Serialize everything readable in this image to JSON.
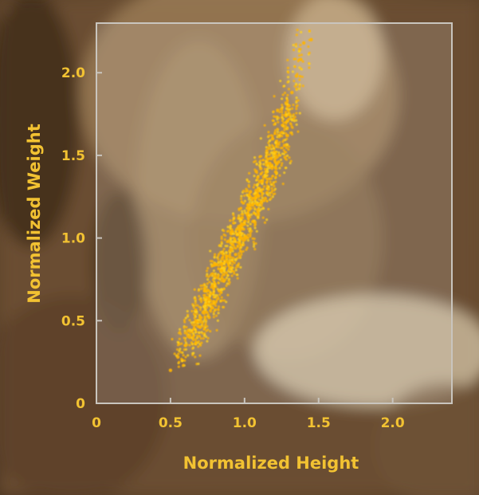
{
  "chart_data": {
    "type": "scatter",
    "title": "",
    "xlabel": "Normalized Height",
    "ylabel": "Normalized Weight",
    "xlim": [
      0,
      2.4
    ],
    "ylim": [
      0,
      2.3
    ],
    "x_ticks": [
      {
        "value": 0,
        "label": "0"
      },
      {
        "value": 0.5,
        "label": "0.5"
      },
      {
        "value": 1.0,
        "label": "1.0"
      },
      {
        "value": 1.5,
        "label": "1.5"
      },
      {
        "value": 2.0,
        "label": "2.0"
      }
    ],
    "y_ticks": [
      {
        "value": 0,
        "label": "0"
      },
      {
        "value": 0.5,
        "label": "0.5"
      },
      {
        "value": 1.0,
        "label": "1.0"
      },
      {
        "value": 1.5,
        "label": "1.5"
      },
      {
        "value": 2.0,
        "label": "2.0"
      }
    ],
    "grid": false,
    "series": [
      {
        "color": "#ffb400",
        "points": [
          [
            0.55,
            0.28
          ],
          [
            0.6,
            0.35
          ],
          [
            0.63,
            0.4
          ],
          [
            0.66,
            0.45
          ],
          [
            0.68,
            0.5
          ],
          [
            0.7,
            0.52
          ],
          [
            0.72,
            0.55
          ],
          [
            0.74,
            0.6
          ],
          [
            0.75,
            0.62
          ],
          [
            0.77,
            0.66
          ],
          [
            0.79,
            0.7
          ],
          [
            0.8,
            0.72
          ],
          [
            0.82,
            0.76
          ],
          [
            0.84,
            0.8
          ],
          [
            0.85,
            0.82
          ],
          [
            0.87,
            0.86
          ],
          [
            0.88,
            0.89
          ],
          [
            0.9,
            0.92
          ],
          [
            0.92,
            0.96
          ],
          [
            0.93,
            0.98
          ],
          [
            0.95,
            1.02
          ],
          [
            0.97,
            1.05
          ],
          [
            0.98,
            1.08
          ],
          [
            1.0,
            1.1
          ],
          [
            1.02,
            1.14
          ],
          [
            1.03,
            1.17
          ],
          [
            1.05,
            1.2
          ],
          [
            1.07,
            1.24
          ],
          [
            1.08,
            1.27
          ],
          [
            1.1,
            1.3
          ],
          [
            1.12,
            1.34
          ],
          [
            1.13,
            1.37
          ],
          [
            1.15,
            1.4
          ],
          [
            1.17,
            1.45
          ],
          [
            1.18,
            1.48
          ],
          [
            1.2,
            1.52
          ],
          [
            1.22,
            1.57
          ],
          [
            1.24,
            1.62
          ],
          [
            1.26,
            1.68
          ],
          [
            1.28,
            1.74
          ],
          [
            1.3,
            1.8
          ],
          [
            1.32,
            1.88
          ],
          [
            1.35,
            1.98
          ],
          [
            1.38,
            2.08
          ],
          [
            1.4,
            2.18
          ],
          [
            0.62,
            0.44
          ],
          [
            0.7,
            0.46
          ],
          [
            0.73,
            0.68
          ],
          [
            0.78,
            0.58
          ],
          [
            0.81,
            0.84
          ],
          [
            0.86,
            0.74
          ],
          [
            0.89,
            0.98
          ],
          [
            0.94,
            0.9
          ],
          [
            0.96,
            1.12
          ],
          [
            1.01,
            1.0
          ],
          [
            1.04,
            1.28
          ],
          [
            1.09,
            1.16
          ],
          [
            1.11,
            1.42
          ],
          [
            1.16,
            1.3
          ],
          [
            1.19,
            1.6
          ],
          [
            1.23,
            1.46
          ],
          [
            1.25,
            1.78
          ],
          [
            1.29,
            1.62
          ],
          [
            0.58,
            0.26
          ],
          [
            0.67,
            0.36
          ],
          [
            0.76,
            0.52
          ],
          [
            0.83,
            0.68
          ],
          [
            0.91,
            0.82
          ],
          [
            0.99,
            0.96
          ],
          [
            1.06,
            1.1
          ],
          [
            1.14,
            1.24
          ],
          [
            1.21,
            1.4
          ],
          [
            1.27,
            1.56
          ],
          [
            1.33,
            1.72
          ],
          [
            0.5,
            0.2
          ],
          [
            1.45,
            2.2
          ]
        ]
      }
    ]
  }
}
